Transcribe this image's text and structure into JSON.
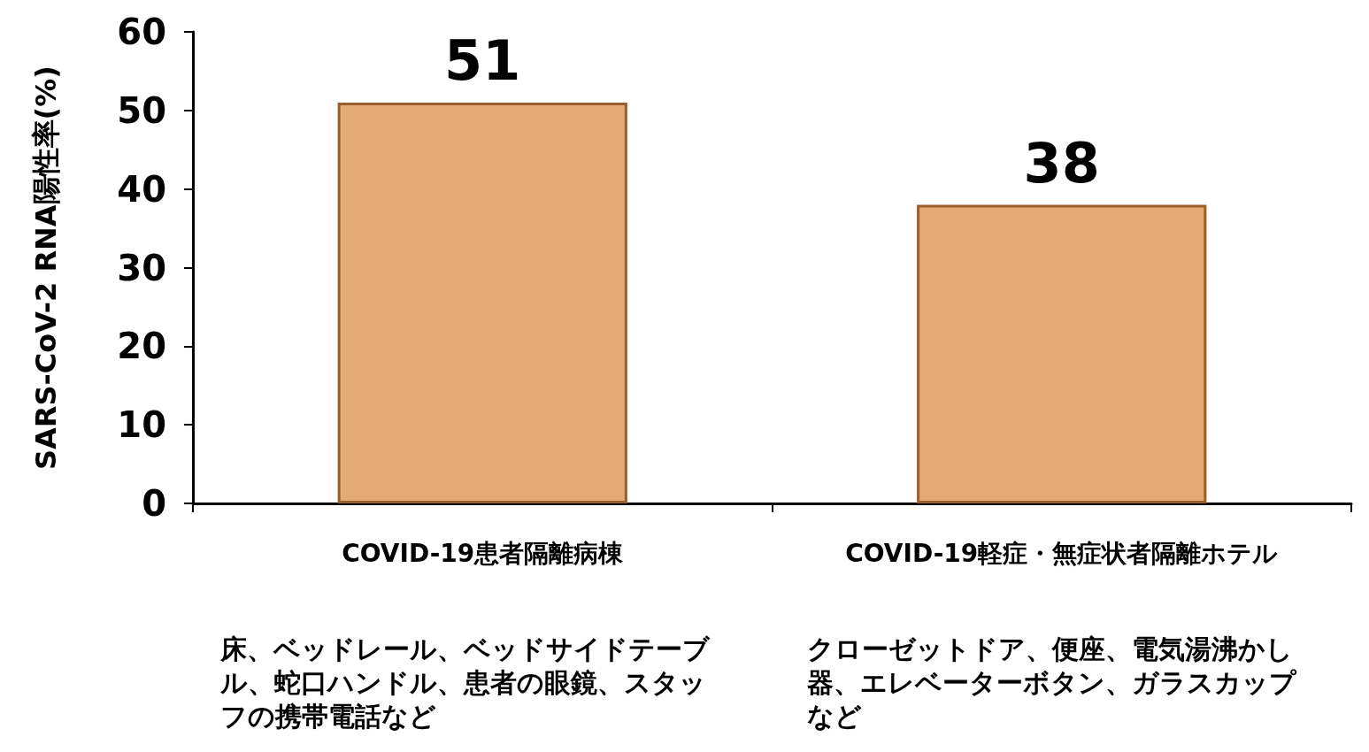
{
  "chart_data": {
    "type": "bar",
    "ylabel": "SARS-CoV-2 RNA陽性率(%)",
    "categories": [
      "COVID-19患者隔離病棟",
      "COVID-19軽症・無症状者隔離ホテル"
    ],
    "values": [
      51,
      38
    ],
    "color": "#e2ab78",
    "ylim": [
      0,
      60
    ],
    "yticks": [
      0,
      10,
      20,
      30,
      40,
      50,
      60
    ],
    "grid": false,
    "data_labels": true,
    "annotations": [
      "床、ベッドレール、ベッドサイドテーブル、蛇口ハンドル、患者の眼鏡、スタッフの携帯電話など",
      "クローゼットドア、便座、電気湯沸かし器、エレベーターボタン、ガラスカップなど"
    ]
  }
}
